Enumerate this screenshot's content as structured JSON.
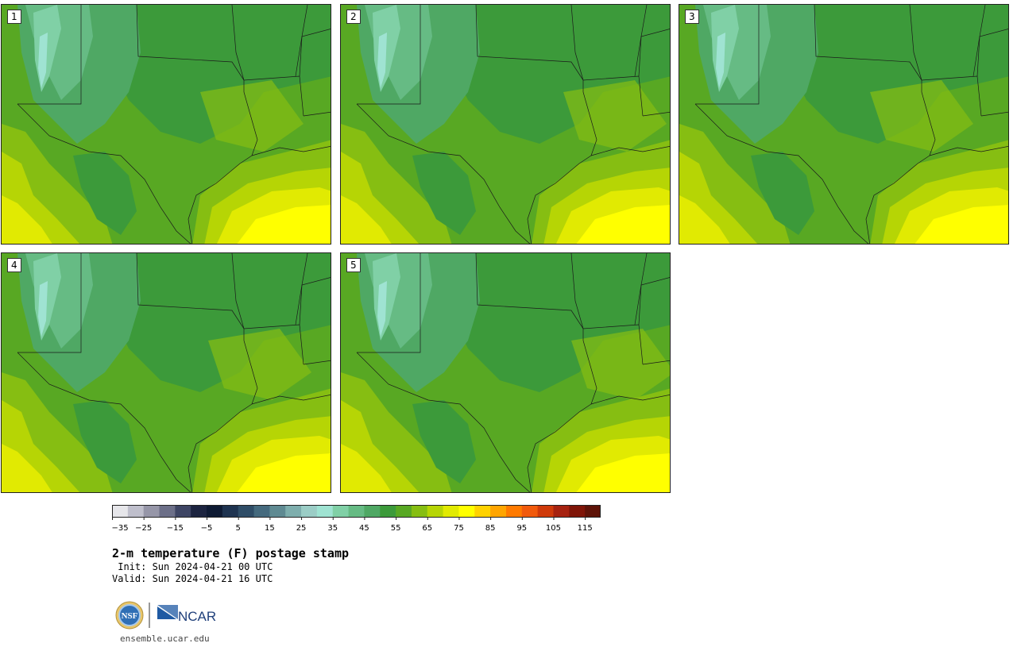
{
  "panels": [
    {
      "label": "1"
    },
    {
      "label": "2"
    },
    {
      "label": "3"
    },
    {
      "label": "4"
    },
    {
      "label": "5"
    }
  ],
  "colorbar": {
    "tick_labels": [
      "−35",
      "−25",
      "−15",
      "−5",
      "5",
      "15",
      "25",
      "35",
      "45",
      "55",
      "65",
      "75",
      "85",
      "95",
      "105",
      "115"
    ],
    "colors": [
      "#e6e6ea",
      "#bfbfcc",
      "#9696a8",
      "#6c6f88",
      "#3e4564",
      "#1c2440",
      "#0e1a33",
      "#1e3350",
      "#2f4d67",
      "#456a7e",
      "#5f8a92",
      "#7eaead",
      "#9bcdc6",
      "#9fe3d2",
      "#80d0a6",
      "#66bb84",
      "#4fa864",
      "#3c9a3a",
      "#58a823",
      "#86be12",
      "#b6d505",
      "#e1ea02",
      "#ffff00",
      "#ffd200",
      "#ffa500",
      "#ff7a00",
      "#f15a0c",
      "#cf3a0a",
      "#a62210",
      "#7f1508",
      "#5e1308"
    ]
  },
  "title": "2-m temperature (F) postage stamp",
  "init": " Init: Sun 2024-04-21 00 UTC",
  "valid": "Valid: Sun 2024-04-21 16 UTC",
  "logos": {
    "nsf": "NSF",
    "ncar": "NCAR"
  },
  "url": "ensemble.ucar.edu"
}
